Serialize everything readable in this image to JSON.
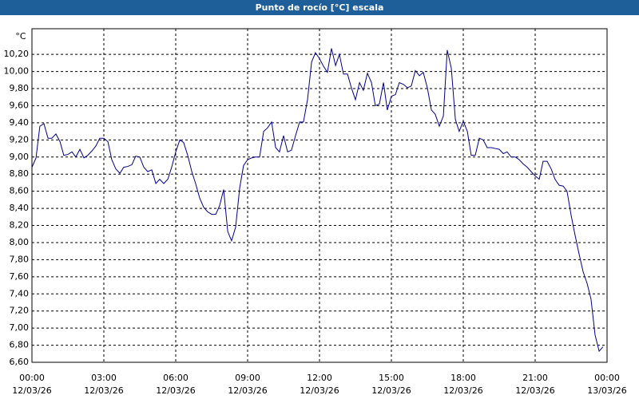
{
  "chart_data": {
    "type": "line",
    "title": "Punto de rocío [°C] escala",
    "y_unit": "°C",
    "xlim": [
      0,
      24
    ],
    "ylim": [
      6.6,
      10.5
    ],
    "grid": true,
    "xticks": [
      {
        "value": 0,
        "label": "00:00"
      },
      {
        "value": 3,
        "label": "03:00"
      },
      {
        "value": 6,
        "label": "06:00"
      },
      {
        "value": 9,
        "label": "09:00"
      },
      {
        "value": 12,
        "label": "12:00"
      },
      {
        "value": 15,
        "label": "15:00"
      },
      {
        "value": 18,
        "label": "18:00"
      },
      {
        "value": 21,
        "label": "21:00"
      },
      {
        "value": 24,
        "label": "00:00"
      }
    ],
    "xtick_dates": [
      "12/03/26",
      "12/03/26",
      "12/03/26",
      "12/03/26",
      "12/03/26",
      "12/03/26",
      "12/03/26",
      "12/03/26",
      "13/03/26"
    ],
    "yticks": [
      {
        "value": 6.6,
        "label": "6,60"
      },
      {
        "value": 6.8,
        "label": "6,80"
      },
      {
        "value": 7.0,
        "label": "7,00"
      },
      {
        "value": 7.2,
        "label": "7,20"
      },
      {
        "value": 7.4,
        "label": "7,40"
      },
      {
        "value": 7.6,
        "label": "7,60"
      },
      {
        "value": 7.8,
        "label": "7,80"
      },
      {
        "value": 8.0,
        "label": "8,00"
      },
      {
        "value": 8.2,
        "label": "8,20"
      },
      {
        "value": 8.4,
        "label": "8,40"
      },
      {
        "value": 8.6,
        "label": "8,60"
      },
      {
        "value": 8.8,
        "label": "8,80"
      },
      {
        "value": 9.0,
        "label": "9,00"
      },
      {
        "value": 9.2,
        "label": "9,20"
      },
      {
        "value": 9.4,
        "label": "9,40"
      },
      {
        "value": 9.6,
        "label": "9,60"
      },
      {
        "value": 9.8,
        "label": "9,80"
      },
      {
        "value": 10.0,
        "label": "10,00"
      },
      {
        "value": 10.2,
        "label": "10,20"
      }
    ],
    "x": [
      0,
      0.17,
      0.33,
      0.5,
      0.67,
      0.83,
      1,
      1.17,
      1.33,
      1.5,
      1.67,
      1.83,
      2,
      2.17,
      2.33,
      2.5,
      2.67,
      2.83,
      3,
      3.17,
      3.33,
      3.5,
      3.67,
      3.83,
      4,
      4.17,
      4.33,
      4.5,
      4.67,
      4.83,
      5,
      5.17,
      5.33,
      5.5,
      5.67,
      5.83,
      6,
      6.17,
      6.33,
      6.5,
      6.67,
      6.83,
      7,
      7.17,
      7.33,
      7.5,
      7.67,
      7.83,
      8,
      8.17,
      8.33,
      8.5,
      8.67,
      8.83,
      9,
      9.17,
      9.33,
      9.5,
      9.67,
      9.83,
      10,
      10.17,
      10.33,
      10.5,
      10.67,
      10.83,
      11,
      11.17,
      11.33,
      11.5,
      11.67,
      11.83,
      12,
      12.17,
      12.33,
      12.5,
      12.67,
      12.83,
      13,
      13.17,
      13.33,
      13.5,
      13.67,
      13.83,
      14,
      14.17,
      14.33,
      14.5,
      14.67,
      14.83,
      15,
      15.17,
      15.33,
      15.5,
      15.67,
      15.83,
      16,
      16.17,
      16.33,
      16.5,
      16.67,
      16.83,
      17,
      17.17,
      17.33,
      17.5,
      17.67,
      17.83,
      18,
      18.17,
      18.33,
      18.5,
      18.67,
      18.83,
      19,
      19.17,
      19.33,
      19.5,
      19.67,
      19.83,
      20,
      20.17,
      20.33,
      20.5,
      20.67,
      20.83,
      21,
      21.17,
      21.33,
      21.5,
      21.67,
      21.83,
      22,
      22.17,
      22.33,
      22.5,
      22.67,
      22.83,
      23,
      23.17,
      23.33,
      23.5,
      23.67,
      23.83
    ],
    "series": [
      {
        "color": "#00008b",
        "values": [
          8.88,
          8.99,
          9.36,
          9.39,
          9.22,
          9.22,
          9.27,
          9.18,
          9.02,
          9.03,
          9.06,
          9.0,
          9.09,
          8.99,
          9.02,
          9.07,
          9.13,
          9.22,
          9.22,
          9.18,
          8.97,
          8.86,
          8.81,
          8.88,
          8.89,
          8.91,
          9.01,
          9.0,
          8.88,
          8.83,
          8.85,
          8.69,
          8.74,
          8.69,
          8.74,
          8.88,
          9.06,
          9.2,
          9.17,
          9.02,
          8.83,
          8.69,
          8.52,
          8.41,
          8.36,
          8.33,
          8.33,
          8.43,
          8.62,
          8.13,
          8.02,
          8.18,
          8.64,
          8.9,
          8.97,
          8.99,
          9.0,
          9.0,
          9.3,
          9.34,
          9.41,
          9.11,
          9.06,
          9.25,
          9.06,
          9.08,
          9.25,
          9.41,
          9.41,
          9.67,
          10.11,
          10.22,
          10.15,
          10.06,
          9.99,
          10.27,
          10.07,
          10.2,
          9.97,
          9.97,
          9.81,
          9.67,
          9.87,
          9.78,
          9.98,
          9.87,
          9.6,
          9.62,
          9.87,
          9.55,
          9.71,
          9.73,
          9.87,
          9.85,
          9.81,
          9.83,
          10.01,
          9.95,
          9.99,
          9.81,
          9.55,
          9.5,
          9.36,
          9.48,
          10.25,
          10.04,
          9.44,
          9.3,
          9.42,
          9.3,
          9.02,
          9.02,
          9.22,
          9.2,
          9.11,
          9.11,
          9.1,
          9.09,
          9.04,
          9.06,
          9.0,
          9.0,
          8.97,
          8.92,
          8.88,
          8.83,
          8.78,
          8.74,
          8.95,
          8.95,
          8.86,
          8.74,
          8.67,
          8.66,
          8.6,
          8.32,
          8.08,
          7.87,
          7.66,
          7.52,
          7.34,
          6.92,
          6.73,
          6.78
        ]
      }
    ]
  }
}
